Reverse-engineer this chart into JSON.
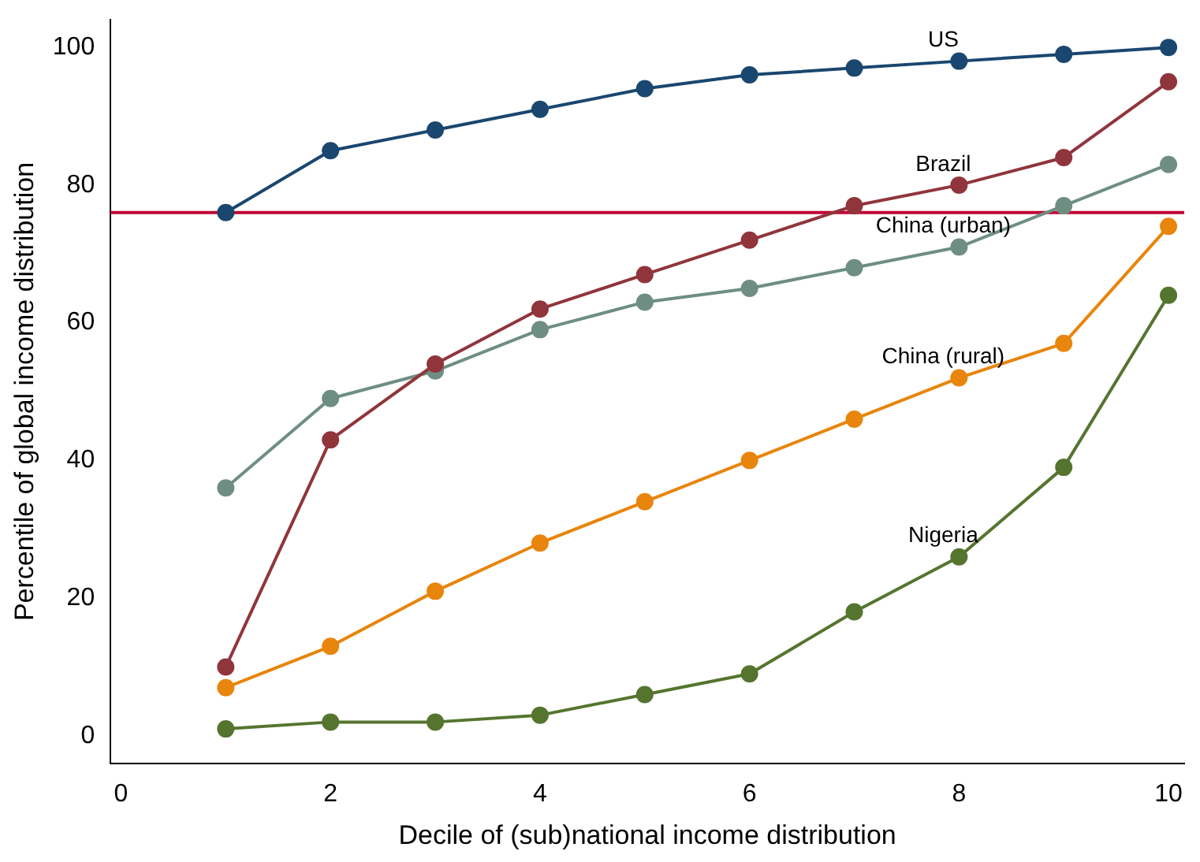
{
  "chart_data": {
    "type": "line",
    "xlabel": "Decile of (sub)national income distribution",
    "ylabel": "Percentile of global income distribution",
    "x": [
      1,
      2,
      3,
      4,
      5,
      6,
      7,
      8,
      9,
      10
    ],
    "series": [
      {
        "name": "US",
        "color": "#1a476f",
        "values": [
          76,
          85,
          88,
          91,
          94,
          96,
          97,
          98,
          99,
          100
        ]
      },
      {
        "name": "Brazil",
        "color": "#90353b",
        "values": [
          10,
          43,
          54,
          62,
          67,
          72,
          77,
          80,
          84,
          95
        ]
      },
      {
        "name": "China (urban)",
        "color": "#6e8e84",
        "values": [
          36,
          49,
          53,
          59,
          63,
          65,
          68,
          71,
          77,
          83
        ]
      },
      {
        "name": "China (rural)",
        "color": "#e8850c",
        "values": [
          7,
          13,
          21,
          28,
          34,
          40,
          46,
          52,
          57,
          74
        ]
      },
      {
        "name": "Nigeria",
        "color": "#55752f",
        "values": [
          1,
          2,
          2,
          3,
          6,
          9,
          18,
          26,
          39,
          64
        ]
      }
    ],
    "xlim": [
      -0.1,
      10.15
    ],
    "xticks": [
      0,
      2,
      4,
      6,
      8,
      10
    ],
    "ylim": [
      -4,
      104
    ],
    "yticks": [
      0,
      20,
      40,
      60,
      80,
      100
    ],
    "ref_lines": [
      {
        "axis": "y",
        "value": 76,
        "color": "#c10534"
      }
    ],
    "marker": "circle",
    "line_style": "solid",
    "grid": false,
    "legend": false
  }
}
